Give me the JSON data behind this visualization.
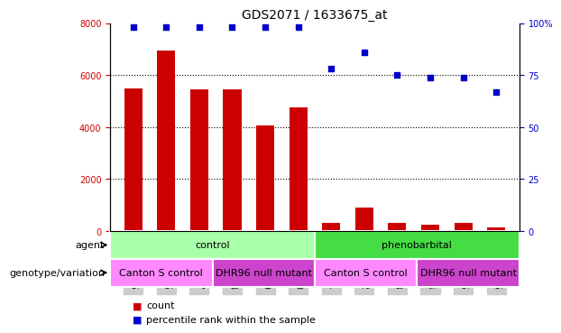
{
  "title": "GDS2071 / 1633675_at",
  "samples": [
    "GSM114985",
    "GSM114986",
    "GSM114987",
    "GSM114988",
    "GSM114989",
    "GSM114990",
    "GSM114991",
    "GSM114992",
    "GSM114993",
    "GSM114994",
    "GSM114995",
    "GSM114996"
  ],
  "bar_values": [
    5500,
    6950,
    5450,
    5450,
    4050,
    4750,
    300,
    900,
    300,
    250,
    300,
    150
  ],
  "percentile_values": [
    98,
    98,
    98,
    98,
    98,
    98,
    78,
    86,
    75,
    74,
    74,
    67
  ],
  "bar_color": "#CC0000",
  "dot_color": "#0000CC",
  "ylim_left": [
    0,
    8000
  ],
  "ylim_right": [
    0,
    100
  ],
  "yticks_left": [
    0,
    2000,
    4000,
    6000,
    8000
  ],
  "ytick_labels_left": [
    "0",
    "2000",
    "4000",
    "6000",
    "8000"
  ],
  "yticks_right": [
    0,
    25,
    50,
    75,
    100
  ],
  "ytick_labels_right": [
    "0",
    "25",
    "50",
    "75",
    "100%"
  ],
  "grid_values": [
    2000,
    4000,
    6000
  ],
  "agent_groups": [
    {
      "label": "control",
      "start": 0,
      "end": 6,
      "color": "#AAFFAA"
    },
    {
      "label": "phenobarbital",
      "start": 6,
      "end": 12,
      "color": "#44DD44"
    }
  ],
  "genotype_groups": [
    {
      "label": "Canton S control",
      "start": 0,
      "end": 3,
      "color": "#FF88FF"
    },
    {
      "label": "DHR96 null mutant",
      "start": 3,
      "end": 6,
      "color": "#CC44CC"
    },
    {
      "label": "Canton S control",
      "start": 6,
      "end": 9,
      "color": "#FF88FF"
    },
    {
      "label": "DHR96 null mutant",
      "start": 9,
      "end": 12,
      "color": "#CC44CC"
    }
  ],
  "agent_label": "agent",
  "geno_label": "genotype/variation",
  "legend_count_label": "count",
  "legend_pct_label": "percentile rank within the sample",
  "xticklabel_bg": "#CCCCCC",
  "tick_fontsize": 7,
  "annot_fontsize": 8,
  "legend_fontsize": 8,
  "title_fontsize": 10
}
